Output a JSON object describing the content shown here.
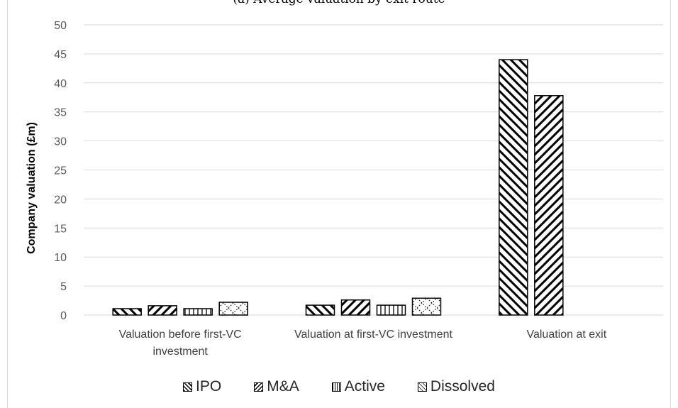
{
  "header_fragment": "(a) Average valuation by exit route",
  "chart_data": {
    "type": "bar",
    "ylabel": "Company valuation (£m)",
    "xlabel": "",
    "ylim": [
      0,
      50
    ],
    "yticks": [
      0,
      5,
      10,
      15,
      20,
      25,
      30,
      35,
      40,
      45,
      50
    ],
    "categories": [
      [
        "Valuation before first-VC",
        "investment"
      ],
      [
        "Valuation at first-VC investment"
      ],
      [
        "Valuation at exit"
      ]
    ],
    "series": [
      {
        "name": "IPO",
        "pattern": "back-diagonal",
        "values": [
          1.1,
          1.7,
          44.0
        ]
      },
      {
        "name": "M&A",
        "pattern": "forward-diagonal",
        "values": [
          1.6,
          2.6,
          37.8
        ]
      },
      {
        "name": "Active",
        "pattern": "vertical",
        "values": [
          1.1,
          1.7,
          null
        ]
      },
      {
        "name": "Dissolved",
        "pattern": "diagonal-cross",
        "values": [
          2.2,
          2.9,
          null
        ]
      }
    ],
    "grid": true,
    "legend_position": "bottom",
    "colors": {
      "bar_outline": "#000000",
      "grid": "#d9d9d9",
      "fill": "#ffffff"
    }
  }
}
